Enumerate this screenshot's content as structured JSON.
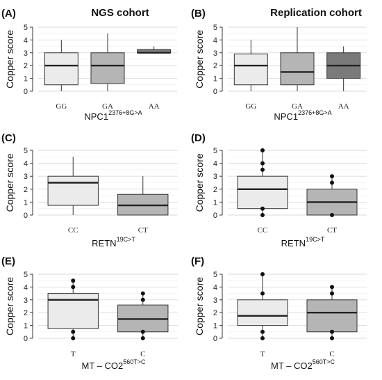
{
  "chart_data": [
    {
      "type": "box",
      "panel_label": "(A)",
      "title": "NGS cohort",
      "ylabel": "Copper score",
      "xlabel": {
        "base": "NPC1",
        "sup": "2376+8G>A"
      },
      "ylim": [
        0,
        5
      ],
      "yticks": [
        "0",
        "1",
        "2",
        "3",
        "4",
        "5"
      ],
      "grid": true,
      "categories": [
        "GG",
        "GA",
        "AA"
      ],
      "boxes": [
        {
          "category": "GG",
          "min": 0.0,
          "q1": 0.5,
          "median": 2.0,
          "q3": 3.0,
          "max": 4.0,
          "outliers": [],
          "fill": "#ebebeb"
        },
        {
          "category": "GA",
          "min": 0.0,
          "q1": 0.6,
          "median": 2.0,
          "q3": 3.0,
          "max": 4.5,
          "outliers": [],
          "fill": "#b5b5b5"
        },
        {
          "category": "AA",
          "min": 3.0,
          "q1": 3.0,
          "median": 3.0,
          "q3": 3.25,
          "max": 3.5,
          "outliers": [],
          "fill": "#7a7a7a"
        }
      ]
    },
    {
      "type": "box",
      "panel_label": "(B)",
      "title": "Replication cohort",
      "ylabel": "Copper score",
      "xlabel": {
        "base": "NPC1",
        "sup": "2376+8G>A"
      },
      "ylim": [
        0,
        5
      ],
      "yticks": [
        "0",
        "1",
        "2",
        "3",
        "4",
        "5"
      ],
      "grid": true,
      "categories": [
        "GG",
        "GA",
        "AA"
      ],
      "boxes": [
        {
          "category": "GG",
          "min": 0.0,
          "q1": 0.5,
          "median": 2.0,
          "q3": 2.9,
          "max": 4.0,
          "outliers": [],
          "fill": "#ebebeb"
        },
        {
          "category": "GA",
          "min": 0.0,
          "q1": 0.5,
          "median": 1.5,
          "q3": 3.0,
          "max": 5.0,
          "outliers": [],
          "fill": "#b5b5b5"
        },
        {
          "category": "AA",
          "min": 0.0,
          "q1": 1.0,
          "median": 2.0,
          "q3": 3.0,
          "max": 3.5,
          "outliers": [],
          "fill": "#7a7a7a"
        }
      ]
    },
    {
      "type": "box",
      "panel_label": "(C)",
      "title": "",
      "ylabel": "Copper score",
      "xlabel": {
        "base": "RETN",
        "sup": "19C>T"
      },
      "ylim": [
        0,
        5
      ],
      "yticks": [
        "0",
        "1",
        "2",
        "3",
        "4",
        "5"
      ],
      "grid": true,
      "categories": [
        "CC",
        "CT"
      ],
      "boxes": [
        {
          "category": "CC",
          "min": 0.0,
          "q1": 0.75,
          "median": 2.5,
          "q3": 3.0,
          "max": 4.5,
          "outliers": [],
          "fill": "#ebebeb"
        },
        {
          "category": "CT",
          "min": 0.0,
          "q1": 0.0,
          "median": 0.75,
          "q3": 1.6,
          "max": 3.0,
          "outliers": [],
          "fill": "#b5b5b5"
        }
      ]
    },
    {
      "type": "box",
      "panel_label": "(D)",
      "title": "",
      "ylabel": "Copper score",
      "xlabel": {
        "base": "RETN",
        "sup": "19C>T"
      },
      "ylim": [
        0,
        5
      ],
      "yticks": [
        "0",
        "1",
        "2",
        "3",
        "4",
        "5"
      ],
      "grid": true,
      "categories": [
        "CC",
        "CT"
      ],
      "boxes": [
        {
          "category": "CC",
          "min": 0.0,
          "q1": 0.5,
          "median": 2.0,
          "q3": 3.0,
          "max": 5.0,
          "outliers": [
            0.0,
            0.5,
            3.5,
            4.0,
            5.0
          ],
          "fill": "#ebebeb"
        },
        {
          "category": "CT",
          "min": 0.0,
          "q1": 0.0,
          "median": 1.0,
          "q3": 2.0,
          "max": 3.0,
          "outliers": [
            0.0,
            2.5,
            3.0
          ],
          "fill": "#b5b5b5"
        }
      ]
    },
    {
      "type": "box",
      "panel_label": "(E)",
      "title": "",
      "ylabel": "Copper score",
      "xlabel": {
        "base": "MT – CO2",
        "sup": "560T>C"
      },
      "ylim": [
        0,
        5
      ],
      "yticks": [
        "0",
        "1",
        "2",
        "3",
        "4",
        "5"
      ],
      "grid": true,
      "categories": [
        "T",
        "C"
      ],
      "boxes": [
        {
          "category": "T",
          "min": 0.0,
          "q1": 0.75,
          "median": 3.0,
          "q3": 3.5,
          "max": 4.5,
          "outliers": [
            0.0,
            0.5,
            4.0,
            4.5
          ],
          "fill": "#ebebeb"
        },
        {
          "category": "C",
          "min": 0.0,
          "q1": 0.5,
          "median": 1.5,
          "q3": 2.6,
          "max": 3.5,
          "outliers": [
            0.0,
            0.5,
            3.0,
            3.5
          ],
          "fill": "#b5b5b5"
        }
      ]
    },
    {
      "type": "box",
      "panel_label": "(F)",
      "title": "",
      "ylabel": "Copper score",
      "xlabel": {
        "base": "MT – CO2",
        "sup": "560T>C"
      },
      "ylim": [
        0,
        5
      ],
      "yticks": [
        "0",
        "1",
        "2",
        "3",
        "4",
        "5"
      ],
      "grid": true,
      "categories": [
        "T",
        "C"
      ],
      "boxes": [
        {
          "category": "T",
          "min": 0.0,
          "q1": 1.0,
          "median": 1.75,
          "q3": 3.0,
          "max": 5.0,
          "outliers": [
            0.0,
            0.5,
            3.5,
            5.0
          ],
          "fill": "#ebebeb"
        },
        {
          "category": "C",
          "min": 0.0,
          "q1": 0.5,
          "median": 2.0,
          "q3": 3.0,
          "max": 4.0,
          "outliers": [
            0.0,
            0.5,
            3.5,
            4.0
          ],
          "fill": "#b5b5b5"
        }
      ]
    }
  ]
}
